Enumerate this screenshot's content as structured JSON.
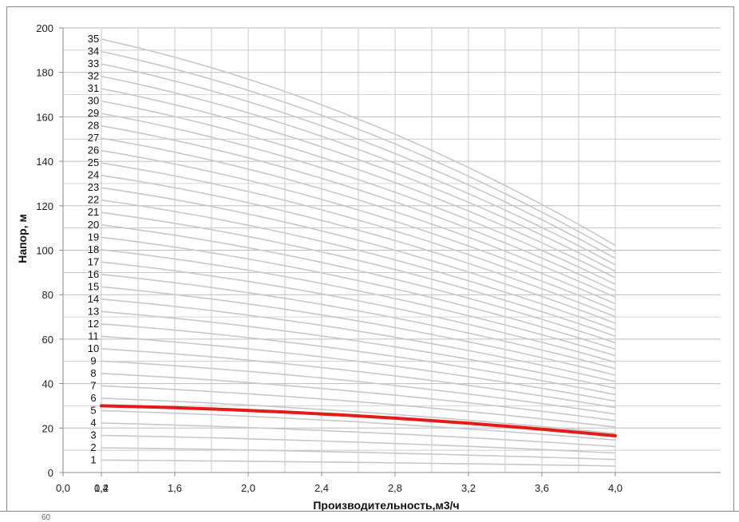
{
  "chart_data": {
    "type": "line",
    "title": "",
    "xlabel": "Производительность,м3/ч",
    "ylabel": "Напор, м",
    "xlim": [
      0.0,
      4.0
    ],
    "ylim": [
      0,
      200
    ],
    "x_ticks": [
      "0,0",
      "0,4",
      "1,2",
      "1,6",
      "2,0",
      "2,4",
      "2,8",
      "3,2",
      "3,6",
      "4,0"
    ],
    "x_tick_values": [
      0.0,
      0.4,
      1.2,
      1.6,
      2.0,
      2.4,
      2.8,
      3.2,
      3.6,
      4.0
    ],
    "y_ticks": [
      "0",
      "20",
      "40",
      "60",
      "80",
      "100",
      "120",
      "140",
      "160",
      "180",
      "200"
    ],
    "y_tick_values": [
      0,
      20,
      40,
      60,
      80,
      100,
      120,
      140,
      160,
      180,
      200
    ],
    "grid": true,
    "x": [
      1.2,
      4.0
    ],
    "series_note_type": "stage curves",
    "curve_labels": [
      "1",
      "2",
      "3",
      "4",
      "5",
      "6",
      "7",
      "8",
      "9",
      "10",
      "11",
      "12",
      "13",
      "14",
      "15",
      "16",
      "17",
      "18",
      "19",
      "20",
      "21",
      "22",
      "23",
      "24",
      "25",
      "26",
      "27",
      "28",
      "29",
      "30",
      "31",
      "32",
      "33",
      "34",
      "35"
    ],
    "stage_head_at_1_2": 5.57,
    "stage_head_at_4_0": 2.92,
    "highlight": {
      "label": "5",
      "color": "#e41b17",
      "head_at_1_2": 30,
      "head_at_4_0": 16.5
    },
    "colors": {
      "curve": "#c8c8c8",
      "grid": "#bdbdbd",
      "axis": "#8a8a8a",
      "highlight": "#e41b17"
    }
  },
  "footer": {
    "partial_text": "60"
  }
}
